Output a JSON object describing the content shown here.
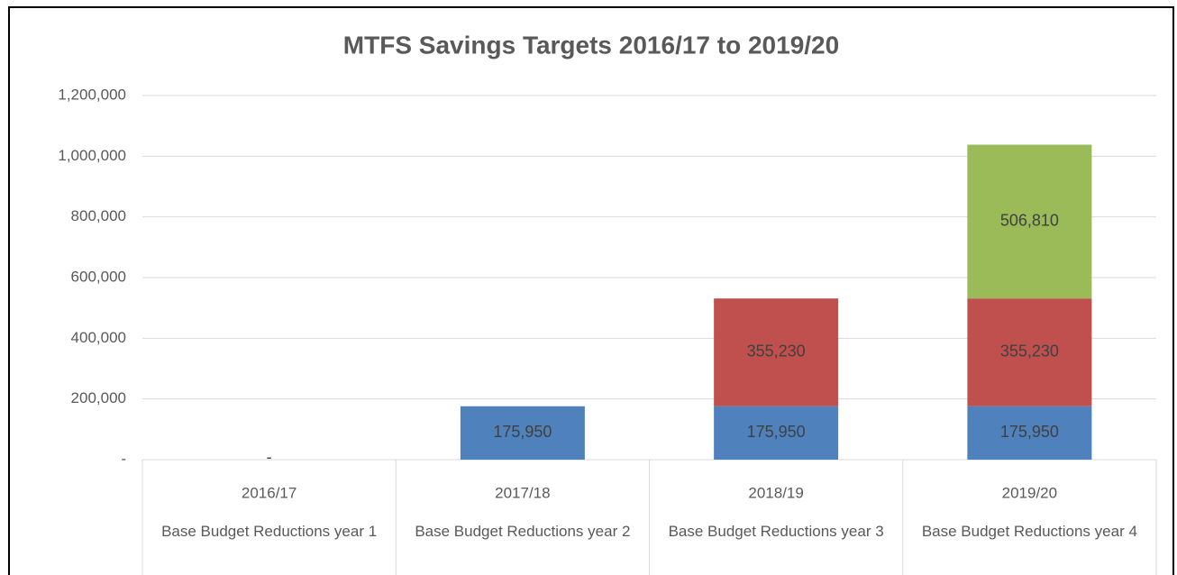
{
  "chart_data": {
    "type": "stacked_bar",
    "title": "MTFS Savings Targets 2016/17 to 2019/20",
    "categories": [
      "2016/17",
      "2017/18",
      "2018/19",
      "2019/20"
    ],
    "sublabels": [
      "Base Budget Reductions year 1",
      "Base Budget Reductions year 2",
      "Base Budget Reductions year 3",
      "Base Budget Reductions year 4"
    ],
    "series": [
      {
        "color": "#4f81bd",
        "values": [
          0,
          175950,
          175950,
          175950
        ],
        "value_labels": [
          "-",
          "175,950",
          "175,950",
          "175,950"
        ]
      },
      {
        "color": "#c0504d",
        "values": [
          null,
          null,
          355230,
          355230
        ],
        "value_labels": [
          null,
          null,
          "355,230",
          "355,230"
        ]
      },
      {
        "color": "#9bbb59",
        "values": [
          null,
          null,
          null,
          506810
        ],
        "value_labels": [
          null,
          null,
          null,
          "506,810"
        ]
      }
    ],
    "ylim": [
      0,
      1200000
    ],
    "yticks": [
      {
        "value": 0,
        "label": "-"
      },
      {
        "value": 200000,
        "label": "200,000"
      },
      {
        "value": 400000,
        "label": "400,000"
      },
      {
        "value": 600000,
        "label": "600,000"
      },
      {
        "value": 800000,
        "label": "800,000"
      },
      {
        "value": 1000000,
        "label": "1,000,000"
      },
      {
        "value": 1200000,
        "label": "1,200,000"
      }
    ],
    "grid": true
  }
}
